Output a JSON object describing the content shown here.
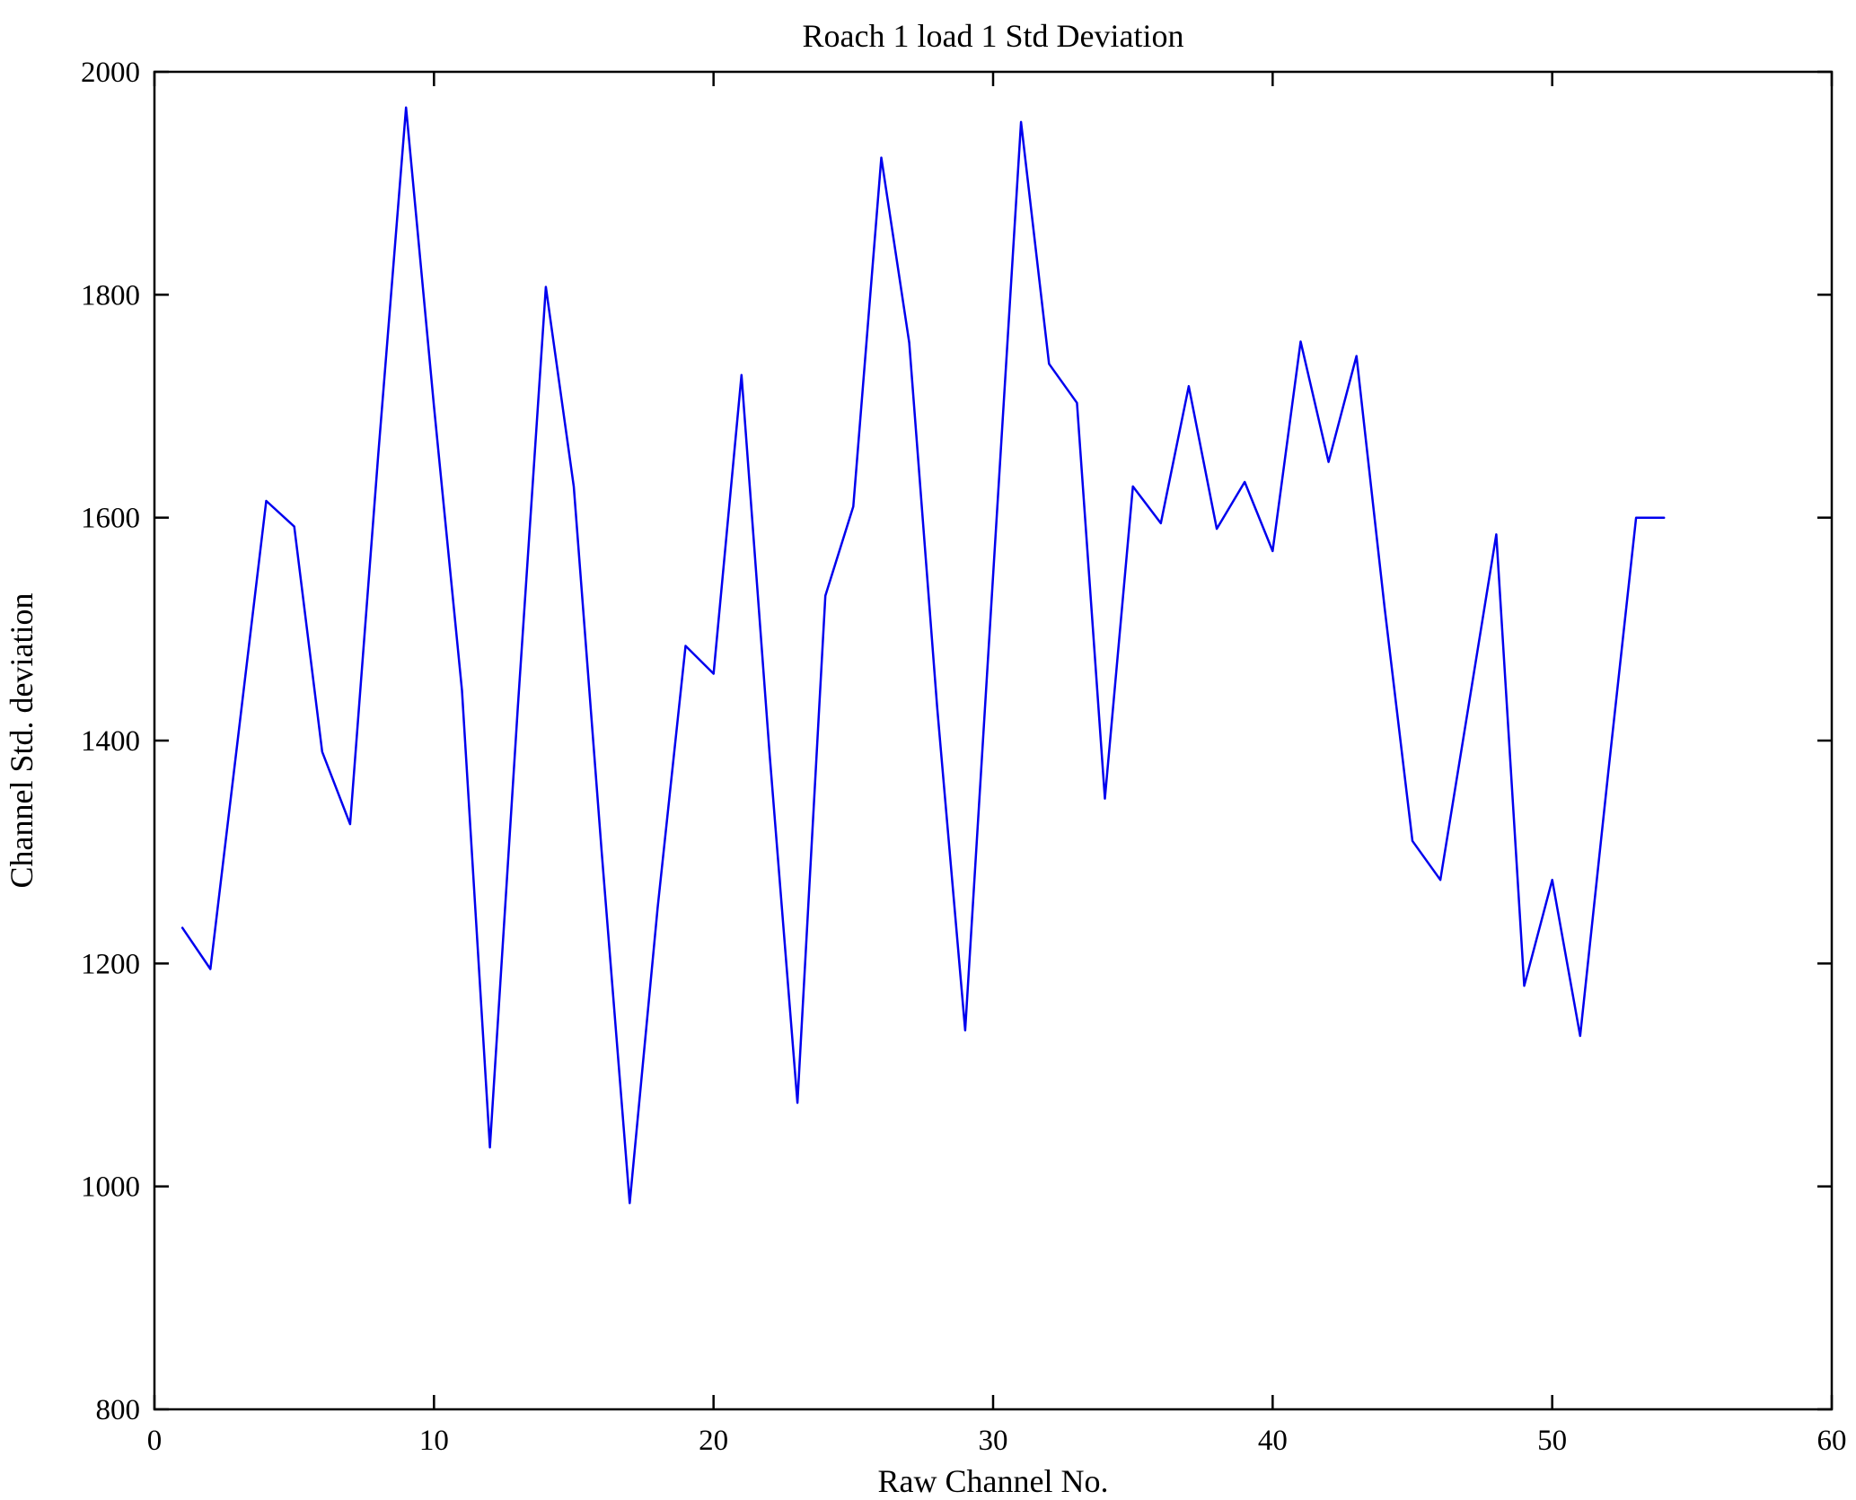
{
  "chart_data": {
    "type": "line",
    "title": "Roach 1 load 1 Std Deviation",
    "xlabel": "Raw Channel No.",
    "ylabel": "Channel Std. deviation",
    "xlim": [
      0,
      60
    ],
    "ylim": [
      800,
      2000
    ],
    "x_ticks": [
      0,
      10,
      20,
      30,
      40,
      50,
      60
    ],
    "y_ticks": [
      800,
      1000,
      1200,
      1400,
      1600,
      1800,
      2000
    ],
    "grid": false,
    "legend": "none",
    "line_color": "#0000ee",
    "axis_color": "#000000",
    "background_color": "#ffffff",
    "series": [
      {
        "name": "Channel Std. deviation",
        "x": [
          1,
          2,
          3,
          4,
          5,
          6,
          7,
          8,
          9,
          10,
          11,
          12,
          13,
          14,
          15,
          16,
          17,
          18,
          19,
          20,
          21,
          22,
          23,
          24,
          25,
          26,
          27,
          28,
          29,
          30,
          31,
          32,
          33,
          34,
          35,
          36,
          37,
          38,
          39,
          40,
          41,
          42,
          43,
          44,
          45,
          46,
          47,
          48,
          49,
          50,
          51,
          52,
          53,
          54
        ],
        "y": [
          1232,
          1195,
          1405,
          1615,
          1592,
          1390,
          1325,
          1655,
          1968,
          1700,
          1445,
          1035,
          1430,
          1807,
          1628,
          1300,
          985,
          1250,
          1485,
          1460,
          1728,
          1390,
          1075,
          1530,
          1610,
          1923,
          1757,
          1430,
          1140,
          1548,
          1955,
          1738,
          1703,
          1348,
          1628,
          1595,
          1718,
          1590,
          1632,
          1570,
          1758,
          1650,
          1745,
          1520,
          1310,
          1275,
          1430,
          1585,
          1180,
          1275,
          1135,
          1370,
          1600,
          1600
        ]
      }
    ]
  }
}
